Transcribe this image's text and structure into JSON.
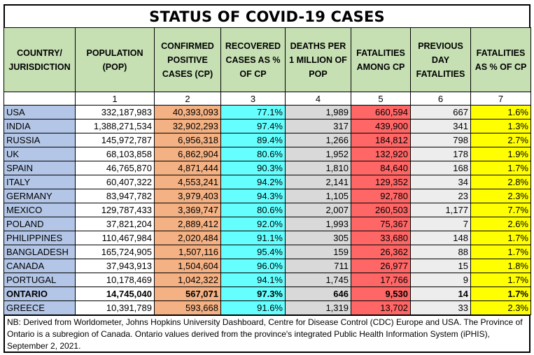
{
  "title": "STATUS OF COVID-19 CASES",
  "columns": [
    "COUNTRY/ JURISDICTION",
    "POPULATION (POP)",
    "CONFIRMED POSITIVE CASES (CP)",
    "RECOVERED CASES AS % OF CP",
    "DEATHS PER 1 MILLION OF POP",
    "FATALITIES AMONG CP",
    "PREVIOUS DAY FATALITIES",
    "FATALITIES AS % OF CP"
  ],
  "column_numbers": [
    "",
    "1",
    "2",
    "3",
    "4",
    "5",
    "6",
    "7"
  ],
  "rows": [
    {
      "country": "USA",
      "pop": "332,187,983",
      "cp": "40,393,093",
      "rec": "77.1%",
      "dpm": "1,989",
      "fat": "660,594",
      "prev": "667",
      "pct": "1.6%",
      "bold": false
    },
    {
      "country": "INDIA",
      "pop": "1,388,271,534",
      "cp": "32,902,293",
      "rec": "97.4%",
      "dpm": "317",
      "fat": "439,900",
      "prev": "341",
      "pct": "1.3%",
      "bold": false
    },
    {
      "country": "RUSSIA",
      "pop": "145,972,787",
      "cp": "6,956,318",
      "rec": "89.4%",
      "dpm": "1,266",
      "fat": "184,812",
      "prev": "798",
      "pct": "2.7%",
      "bold": false
    },
    {
      "country": "UK",
      "pop": "68,103,858",
      "cp": "6,862,904",
      "rec": "80.6%",
      "dpm": "1,952",
      "fat": "132,920",
      "prev": "178",
      "pct": "1.9%",
      "bold": false
    },
    {
      "country": "SPAIN",
      "pop": "46,765,870",
      "cp": "4,871,444",
      "rec": "90.3%",
      "dpm": "1,810",
      "fat": "84,640",
      "prev": "168",
      "pct": "1.7%",
      "bold": false
    },
    {
      "country": "ITALY",
      "pop": "60,407,322",
      "cp": "4,553,241",
      "rec": "94.2%",
      "dpm": "2,141",
      "fat": "129,352",
      "prev": "34",
      "pct": "2.8%",
      "bold": false
    },
    {
      "country": "GERMANY",
      "pop": "83,947,782",
      "cp": "3,979,403",
      "rec": "94.3%",
      "dpm": "1,105",
      "fat": "92,780",
      "prev": "23",
      "pct": "2.3%",
      "bold": false
    },
    {
      "country": "MEXICO",
      "pop": "129,787,433",
      "cp": "3,369,747",
      "rec": "80.6%",
      "dpm": "2,007",
      "fat": "260,503",
      "prev": "1,177",
      "pct": "7.7%",
      "bold": false
    },
    {
      "country": "POLAND",
      "pop": "37,821,204",
      "cp": "2,889,412",
      "rec": "92.0%",
      "dpm": "1,993",
      "fat": "75,367",
      "prev": "7",
      "pct": "2.6%",
      "bold": false
    },
    {
      "country": "PHILIPPINES",
      "pop": "110,467,984",
      "cp": "2,020,484",
      "rec": "91.1%",
      "dpm": "305",
      "fat": "33,680",
      "prev": "148",
      "pct": "1.7%",
      "bold": false
    },
    {
      "country": "BANGLADESH",
      "pop": "165,724,905",
      "cp": "1,507,116",
      "rec": "95.4%",
      "dpm": "159",
      "fat": "26,362",
      "prev": "88",
      "pct": "1.7%",
      "bold": false
    },
    {
      "country": "CANADA",
      "pop": "37,943,913",
      "cp": "1,504,604",
      "rec": "96.0%",
      "dpm": "711",
      "fat": "26,977",
      "prev": "15",
      "pct": "1.8%",
      "bold": false
    },
    {
      "country": "PORTUGAL",
      "pop": "10,178,469",
      "cp": "1,042,322",
      "rec": "94.1%",
      "dpm": "1,745",
      "fat": "17,766",
      "prev": "9",
      "pct": "1.7%",
      "bold": false
    },
    {
      "country": "ONTARIO",
      "pop": "14,745,040",
      "cp": "567,071",
      "rec": "97.3%",
      "dpm": "646",
      "fat": "9,530",
      "prev": "14",
      "pct": "1.7%",
      "bold": true
    },
    {
      "country": "GREECE",
      "pop": "10,391,789",
      "cp": "593,668",
      "rec": "91.6%",
      "dpm": "1,319",
      "fat": "13,702",
      "prev": "33",
      "pct": "2.3%",
      "bold": false
    }
  ],
  "note": "NB: Derived from Worldometer, Johns Hopkins University Dashboard, Centre for Disease Control (CDC) Europe and USA. The Province of Ontario is a subregion of Canada. Ontario values derived from the province's integrated Public Health Information System (iPHIS), September 2, 2021.",
  "colors": {
    "header": "#c6e0b4",
    "country": "#b4c6e7",
    "confirmed": "#f4b183",
    "recovered": "#66ffff",
    "deaths_per_million": "#d9d9d9",
    "fatalities": "#ff6666",
    "previous_day": "#ededed",
    "fatality_pct": "#ffff00"
  }
}
